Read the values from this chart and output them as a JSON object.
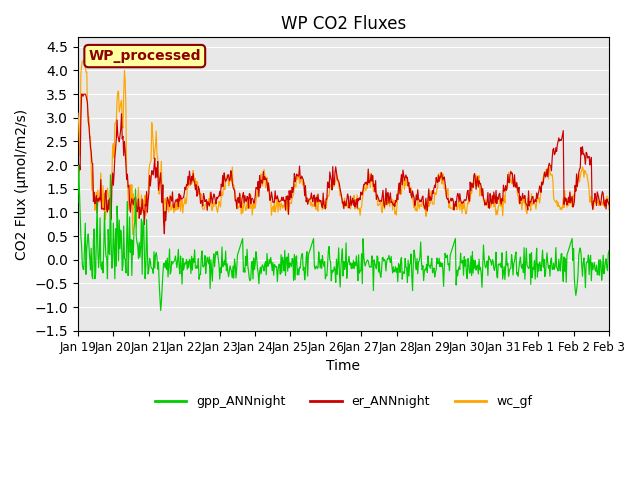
{
  "title": "WP CO2 Fluxes",
  "xlabel": "Time",
  "ylabel": "CO2 Flux (μmol/m2/s)",
  "ylim": [
    -1.5,
    4.7
  ],
  "yticks": [
    -1.5,
    -1.0,
    -0.5,
    0.0,
    0.5,
    1.0,
    1.5,
    2.0,
    2.5,
    3.0,
    3.5,
    4.0,
    4.5
  ],
  "xtick_labels": [
    "Jan 19",
    "Jan 20",
    "Jan 21",
    "Jan 22",
    "Jan 23",
    "Jan 24",
    "Jan 25",
    "Jan 26",
    "Jan 27",
    "Jan 28",
    "Jan 29",
    "Jan 30",
    "Jan 31",
    "Feb 1",
    "Feb 2",
    "Feb 3"
  ],
  "watermark_text": "WP_processed",
  "watermark_color": "#8B0000",
  "watermark_bg": "#FFFFA0",
  "watermark_edge": "#8B0000",
  "color_gpp": "#00CC00",
  "color_er": "#CC0000",
  "color_wc": "#FFA500",
  "legend_labels": [
    "gpp_ANNnight",
    "er_ANNnight",
    "wc_gf"
  ],
  "bg_color": "#E8E8E8",
  "n_days": 15,
  "pts_per_day": 48,
  "seed": 42
}
